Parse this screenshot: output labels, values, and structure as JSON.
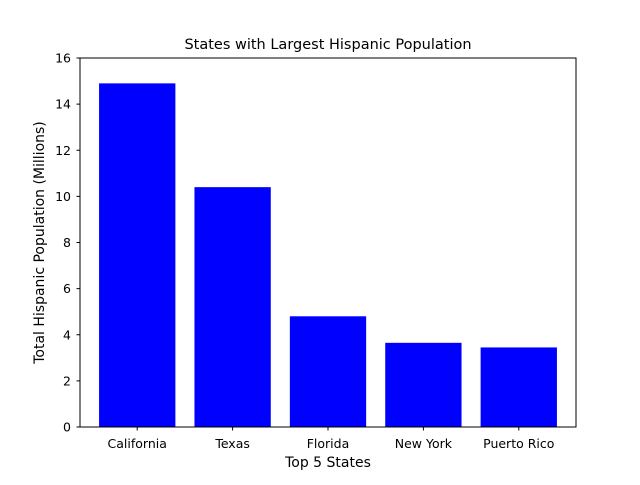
{
  "chart_data": {
    "type": "bar",
    "title": "States with Largest Hispanic Population",
    "xlabel": "Top 5 States",
    "ylabel": "Total Hispanic Population (Millions)",
    "categories": [
      "California",
      "Texas",
      "Florida",
      "New York",
      "Puerto Rico"
    ],
    "values": [
      14.9,
      10.4,
      4.8,
      3.65,
      3.45
    ],
    "ylim": [
      0,
      16
    ],
    "yticks": [
      "0",
      "2",
      "4",
      "6",
      "8",
      "10",
      "12",
      "14",
      "16"
    ],
    "bar_color": "#0000ff",
    "grid": false,
    "legend": "none"
  }
}
